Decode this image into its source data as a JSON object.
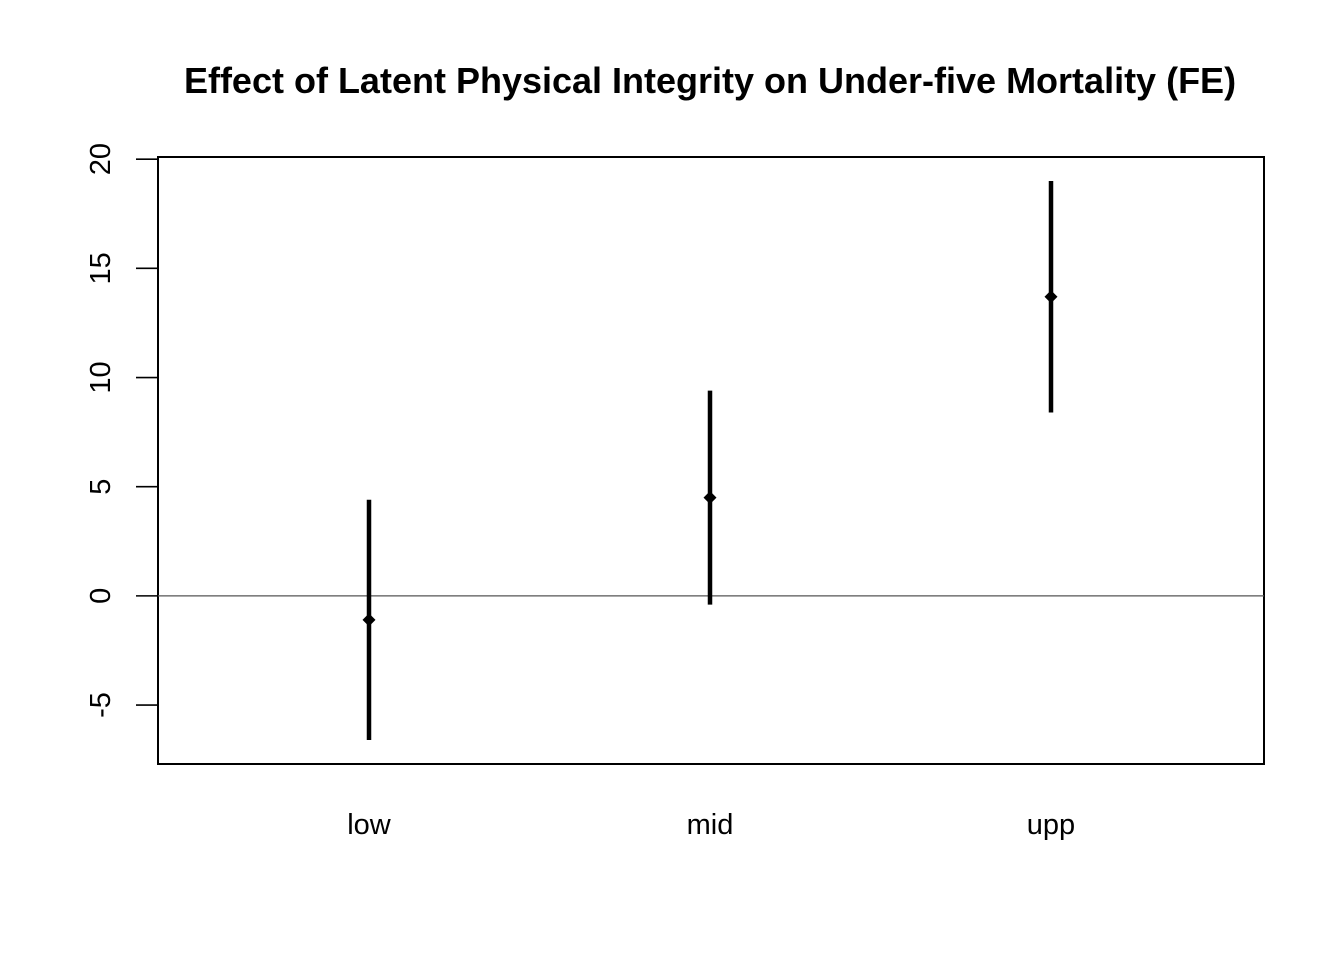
{
  "chart_data": {
    "type": "errorbar",
    "title": "Effect of Latent Physical Integrity on Under-five Mortality (FE)",
    "xlabel": "",
    "ylabel": "",
    "categories": [
      "low",
      "mid",
      "upp"
    ],
    "estimates": [
      -1.1,
      4.5,
      13.7
    ],
    "ci_lower": [
      -6.6,
      -0.4,
      8.4
    ],
    "ci_upper": [
      4.4,
      9.4,
      19.0
    ],
    "ylim": [
      -7.7,
      20.1
    ],
    "yticks": [
      -5,
      0,
      5,
      10,
      15,
      20
    ],
    "reference_line_y": 0,
    "grid": false,
    "legend": "none",
    "colors": {
      "marks": "#000000",
      "reference_line": "#555555"
    }
  }
}
